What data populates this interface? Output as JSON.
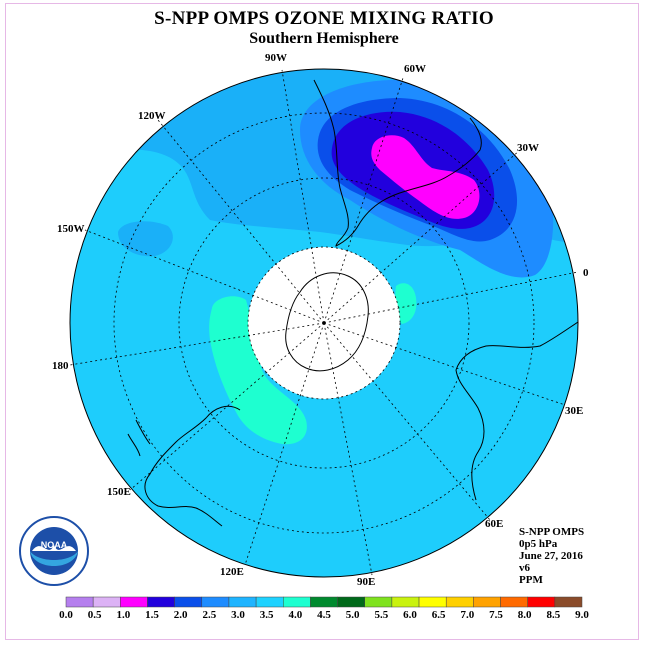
{
  "title": "S-NPP OMPS OZONE MIXING RATIO",
  "subtitle": "Southern Hemisphere",
  "longitude_labels": {
    "w90": "90W",
    "w60": "60W",
    "w30": "30W",
    "w120": "120W",
    "w150": "150W",
    "e0": "0",
    "e180": "180",
    "e30": "30E",
    "e60": "60E",
    "e90": "90E",
    "e120": "120E",
    "e150": "150E"
  },
  "info": {
    "instrument": "S-NPP OMPS",
    "pressure": "0p5 hPa",
    "date": "June 27, 2016",
    "version": "v6",
    "units": "PPM"
  },
  "logo_text": "NOAA",
  "colorbar": {
    "ticks": [
      "0.0",
      "0.5",
      "1.0",
      "1.5",
      "2.0",
      "2.5",
      "3.0",
      "3.5",
      "4.0",
      "4.5",
      "5.0",
      "5.5",
      "6.0",
      "6.5",
      "7.0",
      "7.5",
      "8.0",
      "8.5",
      "9.0"
    ],
    "colors": [
      "#b57fee",
      "#dcb2f5",
      "#ff00ff",
      "#2200dd",
      "#0a4fea",
      "#1e8cff",
      "#1fb4ff",
      "#1ed2ff",
      "#1effd0",
      "#008a2e",
      "#006a1a",
      "#7fe21e",
      "#c9f20f",
      "#ffff00",
      "#ffd000",
      "#ffa200",
      "#ff6a00",
      "#ff0000",
      "#8a4b2a"
    ]
  },
  "colors": {
    "background_field": "#1ecdfc",
    "pole_cap": "#ffffff",
    "coast": "#000000"
  }
}
